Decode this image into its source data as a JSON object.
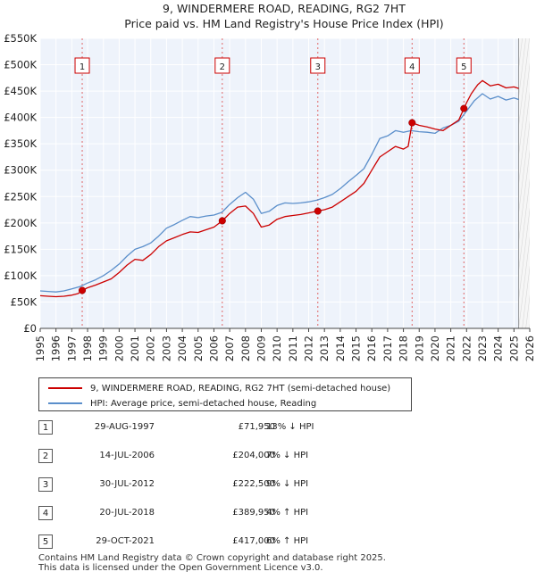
{
  "chart_data": {
    "type": "line",
    "title": "9, WINDERMERE ROAD, READING, RG2 7HT",
    "subtitle": "Price paid vs. HM Land Registry's House Price Index (HPI)",
    "x_range": [
      1995,
      2026
    ],
    "ylim": [
      0,
      550000
    ],
    "x_ticks": [
      "1995",
      "1996",
      "1997",
      "1998",
      "1999",
      "2000",
      "2001",
      "2002",
      "2003",
      "2004",
      "2005",
      "2006",
      "2007",
      "2008",
      "2009",
      "2010",
      "2011",
      "2012",
      "2013",
      "2014",
      "2015",
      "2016",
      "2017",
      "2018",
      "2019",
      "2020",
      "2021",
      "2022",
      "2023",
      "2024",
      "2025",
      "2026"
    ],
    "y_ticks": [
      {
        "value": 0,
        "label": "£0"
      },
      {
        "value": 50000,
        "label": "£50K"
      },
      {
        "value": 100000,
        "label": "£100K"
      },
      {
        "value": 150000,
        "label": "£150K"
      },
      {
        "value": 200000,
        "label": "£200K"
      },
      {
        "value": 250000,
        "label": "£250K"
      },
      {
        "value": 300000,
        "label": "£300K"
      },
      {
        "value": 350000,
        "label": "£350K"
      },
      {
        "value": 400000,
        "label": "£400K"
      },
      {
        "value": 450000,
        "label": "£450K"
      },
      {
        "value": 500000,
        "label": "£500K"
      },
      {
        "value": 550000,
        "label": "£550K"
      }
    ],
    "series": [
      {
        "name": "9, WINDERMERE ROAD, READING, RG2 7HT (semi-detached house)",
        "color": "#cc0000",
        "points": [
          [
            1995.0,
            62000
          ],
          [
            1995.5,
            61000
          ],
          [
            1996.0,
            60000
          ],
          [
            1996.5,
            61000
          ],
          [
            1997.0,
            63000
          ],
          [
            1997.4,
            66000
          ],
          [
            1997.66,
            71950
          ],
          [
            1998.0,
            77000
          ],
          [
            1998.5,
            82000
          ],
          [
            1999.0,
            88000
          ],
          [
            1999.5,
            94000
          ],
          [
            2000.0,
            106000
          ],
          [
            2000.5,
            120000
          ],
          [
            2001.0,
            131000
          ],
          [
            2001.5,
            129000
          ],
          [
            2002.0,
            140000
          ],
          [
            2002.5,
            155000
          ],
          [
            2003.0,
            166000
          ],
          [
            2003.5,
            172000
          ],
          [
            2004.0,
            178000
          ],
          [
            2004.5,
            183000
          ],
          [
            2005.0,
            182000
          ],
          [
            2005.5,
            187000
          ],
          [
            2006.0,
            192000
          ],
          [
            2006.53,
            204000
          ],
          [
            2007.0,
            218000
          ],
          [
            2007.5,
            230000
          ],
          [
            2008.0,
            232000
          ],
          [
            2008.5,
            218000
          ],
          [
            2009.0,
            192000
          ],
          [
            2009.5,
            196000
          ],
          [
            2010.0,
            207000
          ],
          [
            2010.5,
            212000
          ],
          [
            2011.0,
            214000
          ],
          [
            2011.5,
            216000
          ],
          [
            2012.0,
            219000
          ],
          [
            2012.58,
            222500
          ],
          [
            2013.0,
            225000
          ],
          [
            2013.5,
            230000
          ],
          [
            2014.0,
            240000
          ],
          [
            2014.5,
            250000
          ],
          [
            2015.0,
            260000
          ],
          [
            2015.5,
            275000
          ],
          [
            2016.0,
            300000
          ],
          [
            2016.5,
            325000
          ],
          [
            2017.0,
            335000
          ],
          [
            2017.5,
            345000
          ],
          [
            2018.0,
            340000
          ],
          [
            2018.3,
            345000
          ],
          [
            2018.55,
            389950
          ],
          [
            2019.0,
            385000
          ],
          [
            2019.5,
            382000
          ],
          [
            2020.0,
            378000
          ],
          [
            2020.5,
            375000
          ],
          [
            2021.0,
            385000
          ],
          [
            2021.5,
            395000
          ],
          [
            2021.83,
            417000
          ],
          [
            2022.0,
            428000
          ],
          [
            2022.3,
            445000
          ],
          [
            2022.7,
            462000
          ],
          [
            2023.0,
            470000
          ],
          [
            2023.5,
            460000
          ],
          [
            2024.0,
            463000
          ],
          [
            2024.5,
            456000
          ],
          [
            2025.0,
            458000
          ],
          [
            2025.3,
            455000
          ]
        ]
      },
      {
        "name": "HPI: Average price, semi-detached house, Reading",
        "color": "#5b8fcb",
        "points": [
          [
            1995.0,
            71000
          ],
          [
            1995.5,
            70000
          ],
          [
            1996.0,
            69000
          ],
          [
            1996.5,
            71000
          ],
          [
            1997.0,
            75000
          ],
          [
            1997.5,
            79000
          ],
          [
            1998.0,
            86000
          ],
          [
            1998.5,
            92000
          ],
          [
            1999.0,
            100000
          ],
          [
            1999.5,
            110000
          ],
          [
            2000.0,
            122000
          ],
          [
            2000.5,
            137000
          ],
          [
            2001.0,
            150000
          ],
          [
            2001.5,
            155000
          ],
          [
            2002.0,
            162000
          ],
          [
            2002.5,
            175000
          ],
          [
            2003.0,
            190000
          ],
          [
            2003.5,
            197000
          ],
          [
            2004.0,
            205000
          ],
          [
            2004.5,
            212000
          ],
          [
            2005.0,
            210000
          ],
          [
            2005.5,
            213000
          ],
          [
            2006.0,
            215000
          ],
          [
            2006.5,
            220000
          ],
          [
            2007.0,
            235000
          ],
          [
            2007.5,
            248000
          ],
          [
            2008.0,
            258000
          ],
          [
            2008.5,
            245000
          ],
          [
            2009.0,
            218000
          ],
          [
            2009.5,
            222000
          ],
          [
            2010.0,
            233000
          ],
          [
            2010.5,
            238000
          ],
          [
            2011.0,
            237000
          ],
          [
            2011.5,
            238000
          ],
          [
            2012.0,
            240000
          ],
          [
            2012.5,
            243000
          ],
          [
            2013.0,
            248000
          ],
          [
            2013.5,
            254000
          ],
          [
            2014.0,
            265000
          ],
          [
            2014.5,
            278000
          ],
          [
            2015.0,
            290000
          ],
          [
            2015.5,
            303000
          ],
          [
            2016.0,
            330000
          ],
          [
            2016.5,
            360000
          ],
          [
            2017.0,
            365000
          ],
          [
            2017.5,
            375000
          ],
          [
            2018.0,
            372000
          ],
          [
            2018.5,
            375000
          ],
          [
            2019.0,
            373000
          ],
          [
            2019.5,
            372000
          ],
          [
            2020.0,
            370000
          ],
          [
            2020.5,
            380000
          ],
          [
            2021.0,
            385000
          ],
          [
            2021.5,
            393000
          ],
          [
            2022.0,
            412000
          ],
          [
            2022.5,
            432000
          ],
          [
            2023.0,
            445000
          ],
          [
            2023.5,
            435000
          ],
          [
            2024.0,
            440000
          ],
          [
            2024.5,
            433000
          ],
          [
            2025.0,
            437000
          ],
          [
            2025.3,
            434000
          ]
        ]
      }
    ],
    "sales": [
      {
        "num": "1",
        "x": 1997.66,
        "price": 71950,
        "date": "29-AUG-1997",
        "price_label": "£71,950",
        "hpi": "13% ↓ HPI"
      },
      {
        "num": "2",
        "x": 2006.53,
        "price": 204000,
        "date": "14-JUL-2006",
        "price_label": "£204,000",
        "hpi": "7% ↓ HPI"
      },
      {
        "num": "3",
        "x": 2012.58,
        "price": 222500,
        "date": "30-JUL-2012",
        "price_label": "£222,500",
        "hpi": "9% ↓ HPI"
      },
      {
        "num": "4",
        "x": 2018.55,
        "price": 389950,
        "date": "20-JUL-2018",
        "price_label": "£389,950",
        "hpi": "4% ↑ HPI"
      },
      {
        "num": "5",
        "x": 2021.83,
        "price": 417000,
        "date": "29-OCT-2021",
        "price_label": "£417,000",
        "hpi": "6% ↑ HPI"
      }
    ],
    "data_end": 2025.3,
    "colors": {
      "price": "#cc0000",
      "hpi": "#5b8fcb",
      "plot_bg": "#eef3fb",
      "grid": "#ffffff"
    }
  },
  "legend": {
    "price_label": "9, WINDERMERE ROAD, READING, RG2 7HT (semi-detached house)",
    "hpi_label": "HPI: Average price, semi-detached house, Reading"
  },
  "footer": {
    "line1": "Contains HM Land Registry data © Crown copyright and database right 2025.",
    "line2": "This data is licensed under the Open Government Licence v3.0."
  }
}
